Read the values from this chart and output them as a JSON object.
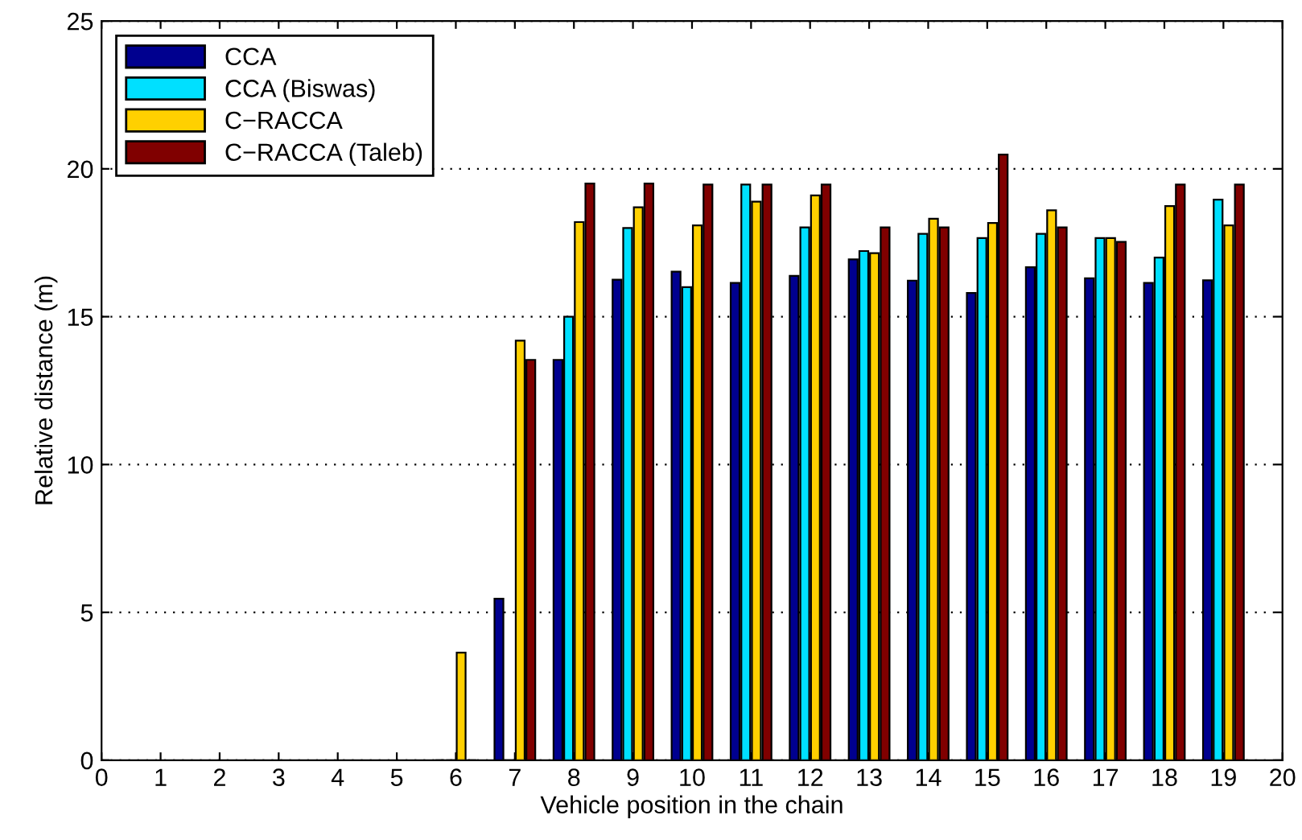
{
  "chart_data": {
    "type": "bar",
    "xlabel": "Vehicle position in the chain",
    "ylabel": "Relative distance (m)",
    "x": [
      6,
      7,
      8,
      9,
      10,
      11,
      12,
      13,
      14,
      15,
      16,
      17,
      18,
      19
    ],
    "series": [
      {
        "name": "CCA",
        "color": "#00008f",
        "values": [
          0,
          5.46,
          13.54,
          16.25,
          16.52,
          16.14,
          16.38,
          16.94,
          16.22,
          15.8,
          16.67,
          16.3,
          16.14,
          16.23
        ]
      },
      {
        "name": "CCA (Biswas)",
        "color": "#00e0ff",
        "values": [
          0,
          0,
          15.0,
          18.0,
          16.0,
          19.47,
          18.02,
          17.22,
          17.8,
          17.66,
          17.8,
          17.66,
          17.0,
          18.96
        ]
      },
      {
        "name": "C−RACCA",
        "color": "#ffd000",
        "values": [
          3.64,
          14.19,
          18.2,
          18.7,
          18.09,
          18.89,
          19.1,
          17.15,
          18.31,
          18.17,
          18.6,
          17.66,
          18.74,
          18.09
        ]
      },
      {
        "name": "C−RACCA (Taleb)",
        "color": "#800000",
        "values": [
          0,
          13.54,
          19.5,
          19.5,
          19.47,
          19.47,
          19.47,
          18.02,
          18.02,
          20.48,
          18.02,
          17.53,
          19.47,
          19.47
        ]
      }
    ],
    "xlim": [
      0,
      20
    ],
    "xticks": [
      0,
      1,
      2,
      3,
      4,
      5,
      6,
      7,
      8,
      9,
      10,
      11,
      12,
      13,
      14,
      15,
      16,
      17,
      18,
      19,
      20
    ],
    "ylim": [
      0,
      25
    ],
    "yticks": [
      0,
      5,
      10,
      15,
      20,
      25
    ],
    "grid": "y",
    "legend": "top left"
  }
}
